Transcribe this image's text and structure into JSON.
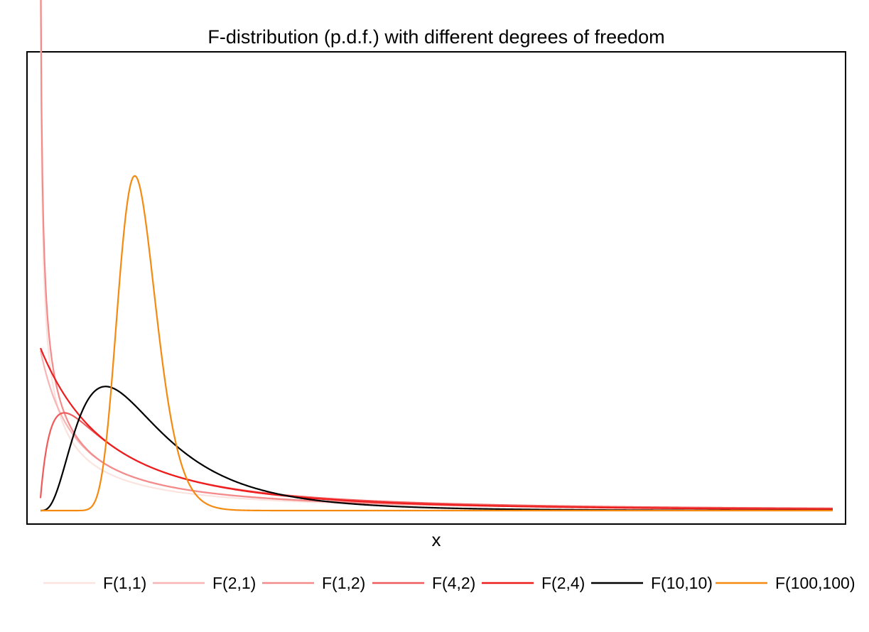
{
  "chart_data": {
    "type": "line",
    "title": "F-distribution (p.d.f.) with different degrees of freedom",
    "xlabel": "x",
    "ylabel": "",
    "xlim": [
      0.01,
      8
    ],
    "ylim": [
      0,
      2.7
    ],
    "grid": false,
    "legend_position": "bottom",
    "series": [
      {
        "name": "F(1,1)",
        "df1": 1,
        "df2": 1,
        "color": "#FBE3DF"
      },
      {
        "name": "F(2,1)",
        "df1": 2,
        "df2": 1,
        "color": "#F9B5B5"
      },
      {
        "name": "F(1,2)",
        "df1": 1,
        "df2": 2,
        "color": "#F58A8A"
      },
      {
        "name": "F(4,2)",
        "df1": 4,
        "df2": 2,
        "color": "#F05A5A"
      },
      {
        "name": "F(2,4)",
        "df1": 2,
        "df2": 4,
        "color": "#EE1C1C"
      },
      {
        "name": "F(10,10)",
        "df1": 10,
        "df2": 10,
        "color": "#000000"
      },
      {
        "name": "F(100,100)",
        "df1": 100,
        "df2": 100,
        "color": "#F58A10"
      }
    ]
  }
}
